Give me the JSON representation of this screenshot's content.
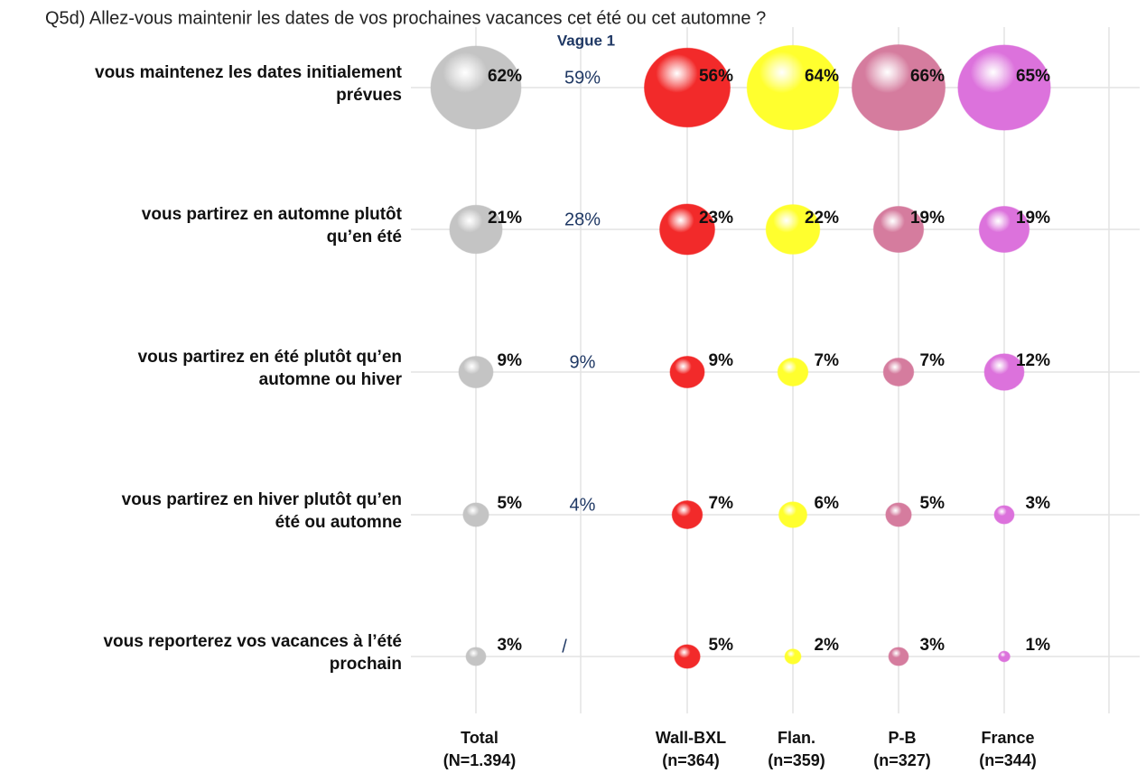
{
  "chart_data": {
    "type": "bubble",
    "title": "Q5d)  Allez-vous maintenir les dates de vos prochaines vacances cet été ou cet automne ?",
    "categories": [
      [
        "vous maintenez les dates initialement",
        "prévues"
      ],
      [
        "vous partirez en automne plutôt",
        "qu’en été"
      ],
      [
        "vous partirez en été plutôt qu’en",
        "automne ou hiver"
      ],
      [
        "vous partirez en hiver plutôt qu’en",
        "été ou automne"
      ],
      [
        "vous reporterez vos vacances à l’été",
        "prochain"
      ]
    ],
    "series": [
      {
        "name": "Total",
        "sample": "(N=1.394)",
        "color": "#c4c4c4",
        "values": [
          62,
          21,
          9,
          5,
          3
        ],
        "value_labels": [
          "62%",
          "21%",
          "9%",
          "5%",
          "3%"
        ]
      },
      {
        "name": "Vague 1",
        "style": "text",
        "color": "#1f3864",
        "values": [
          59,
          28,
          9,
          4,
          null
        ],
        "value_labels": [
          "59%",
          "28%",
          "9%",
          "4%",
          "/"
        ]
      },
      {
        "name": "Wall-BXL",
        "sample": "(n=364)",
        "color": "#f22a2a",
        "values": [
          56,
          23,
          9,
          7,
          5
        ],
        "value_labels": [
          "56%",
          "23%",
          "9%",
          "7%",
          "5%"
        ]
      },
      {
        "name": "Flan.",
        "sample": "(n=359)",
        "color": "#ffff2e",
        "values": [
          64,
          22,
          7,
          6,
          2
        ],
        "value_labels": [
          "64%",
          "22%",
          "7%",
          "6%",
          "2%"
        ]
      },
      {
        "name": "P-B",
        "sample": "(n=327)",
        "color": "#d57c9e",
        "values": [
          66,
          19,
          7,
          5,
          3
        ],
        "value_labels": [
          "66%",
          "19%",
          "7%",
          "5%",
          "3%"
        ]
      },
      {
        "name": "France",
        "sample": "(n=344)",
        "color": "#dc72dc",
        "values": [
          65,
          19,
          12,
          3,
          1
        ],
        "value_labels": [
          "65%",
          "19%",
          "12%",
          "3%",
          "1%"
        ]
      }
    ],
    "grid": true
  }
}
